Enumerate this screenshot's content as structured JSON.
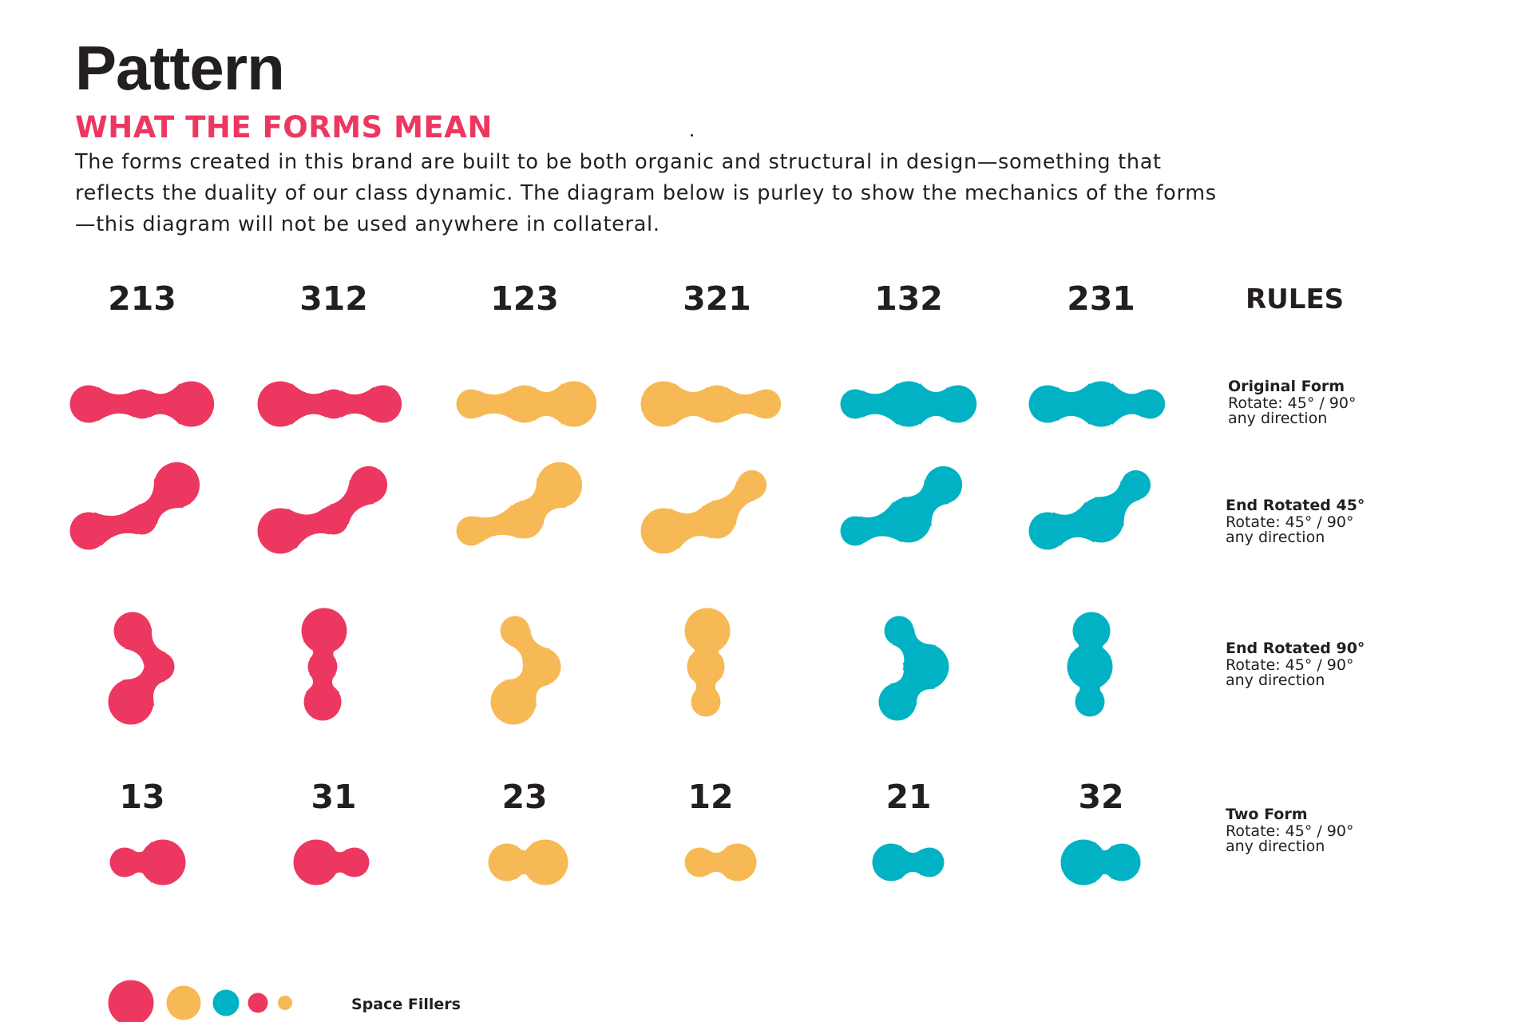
{
  "page": {
    "title": "Pattern",
    "subtitle": "WHAT THE FORMS MEAN",
    "intro": "The forms created in this brand are built to be both organic and structural in design—something that reflects the duality of our class dynamic. The diagram below is purley to show the mechanics of the forms—this diagram will not be used anywhere in collateral."
  },
  "colors": {
    "pink": "#ec3860",
    "yellow": "#f7b955",
    "teal": "#00b2c4",
    "text": "#231f20",
    "accent": "#ec3860"
  },
  "diagram": {
    "three_form_labels": [
      "213",
      "312",
      "123",
      "321",
      "132",
      "231"
    ],
    "three_form_sizes": [
      [
        2,
        1,
        3
      ],
      [
        3,
        1,
        2
      ],
      [
        1,
        2,
        3
      ],
      [
        3,
        2,
        1
      ],
      [
        1,
        3,
        2
      ],
      [
        2,
        3,
        1
      ]
    ],
    "two_form_labels": [
      "13",
      "31",
      "23",
      "12",
      "21",
      "32"
    ],
    "two_form_sizes": [
      [
        1,
        3
      ],
      [
        3,
        1
      ],
      [
        2,
        3
      ],
      [
        1,
        2
      ],
      [
        2,
        1
      ],
      [
        3,
        2
      ]
    ],
    "column_colors": [
      "pink",
      "pink",
      "yellow",
      "yellow",
      "teal",
      "teal"
    ],
    "rows": [
      {
        "name": "original",
        "rotation_deg": 0
      },
      {
        "name": "end-rotated-45",
        "rotation_deg": 45
      },
      {
        "name": "end-rotated-90",
        "rotation_deg": 90
      }
    ]
  },
  "rules": {
    "heading": "RULES",
    "items": [
      {
        "title": "Original Form",
        "line1": "Rotate: 45° / 90°",
        "line2": "any direction"
      },
      {
        "title": "End Rotated 45°",
        "line1": "Rotate: 45° / 90°",
        "line2": "any direction"
      },
      {
        "title": "End Rotated 90°",
        "line1": "Rotate: 45° / 90°",
        "line2": "any direction"
      },
      {
        "title": "Two Form",
        "line1": "Rotate: 45° / 90°",
        "line2": "any direction"
      }
    ]
  },
  "space_fillers": {
    "label": "Space Fillers",
    "dots": [
      {
        "color": "pink",
        "size": "large"
      },
      {
        "color": "yellow",
        "size": "medium"
      },
      {
        "color": "teal",
        "size": "small"
      },
      {
        "color": "pink",
        "size": "extra-small"
      },
      {
        "color": "yellow",
        "size": "tiny"
      }
    ]
  }
}
